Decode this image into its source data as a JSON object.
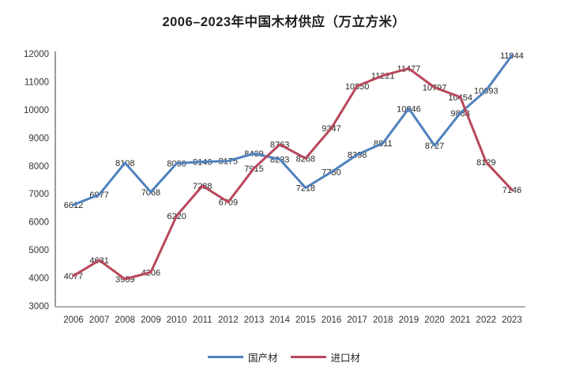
{
  "chart_data": {
    "type": "line",
    "title": "2006–2023年中国木材供应（万立方米）",
    "x": [
      "2006",
      "2007",
      "2008",
      "2009",
      "2010",
      "2011",
      "2012",
      "2013",
      "2014",
      "2015",
      "2016",
      "2017",
      "2018",
      "2019",
      "2020",
      "2021",
      "2022",
      "2023"
    ],
    "series": [
      {
        "name": "国产材",
        "color": "#4f81bd",
        "values": [
          6612,
          6977,
          8108,
          7068,
          8090,
          8146,
          8175,
          8439,
          8233,
          7218,
          7780,
          8398,
          8811,
          10046,
          8727,
          9888,
          10693,
          11944
        ]
      },
      {
        "name": "进口材",
        "color": "#b9475b",
        "values": [
          4077,
          4631,
          3959,
          4206,
          6220,
          7288,
          6709,
          7915,
          8763,
          8268,
          9347,
          10850,
          11221,
          11477,
          10797,
          10454,
          8129,
          7146
        ]
      }
    ],
    "ylim": [
      3000,
      12000
    ],
    "y_ticks": [
      3000,
      4000,
      5000,
      6000,
      7000,
      8000,
      9000,
      10000,
      11000,
      12000
    ],
    "grid": false,
    "point_labels": true,
    "legend_position": "bottom"
  },
  "style": {
    "axis_line_color": "#595959",
    "baseline_color": "#a6a6a6",
    "tick_text_color": "#333333",
    "data_label_color": "#262626"
  }
}
